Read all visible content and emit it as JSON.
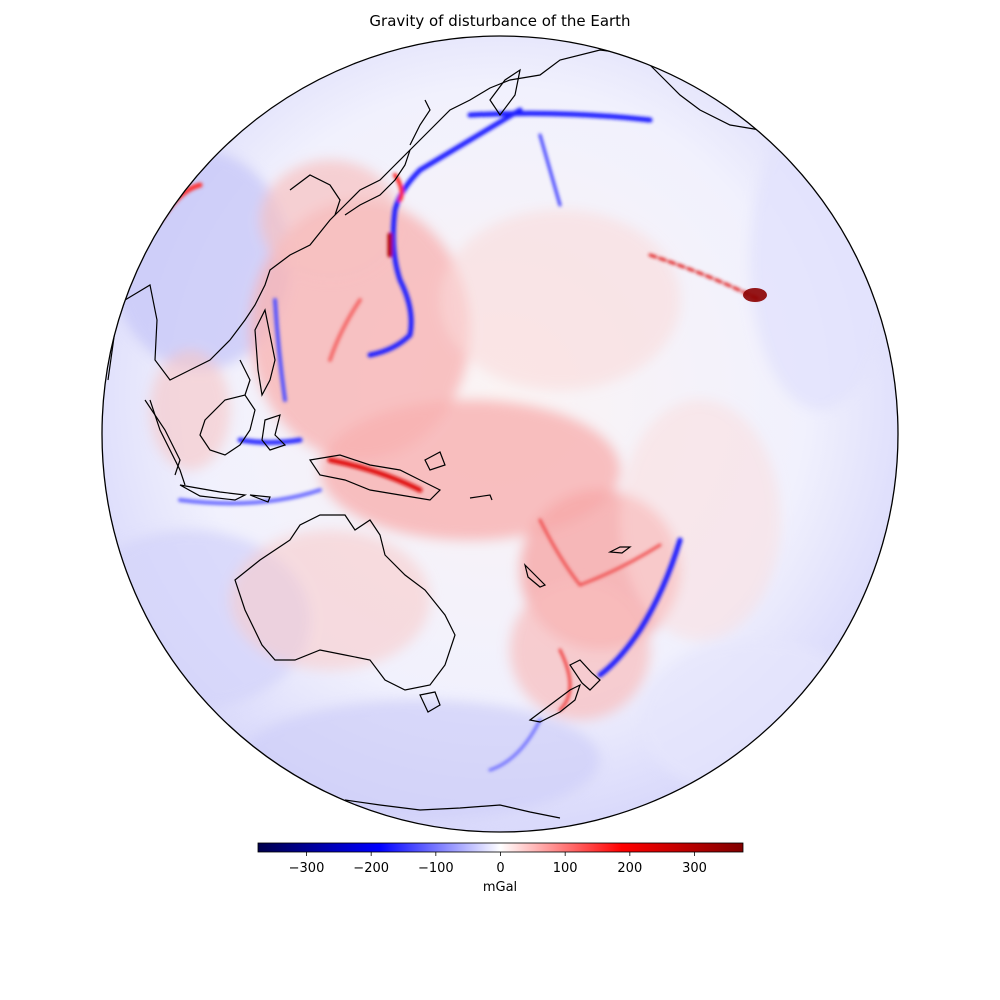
{
  "title": "Gravity of disturbance of the Earth",
  "map": {
    "projection": "orthographic",
    "colormap": "seismic",
    "coastlines": [
      "Asia",
      "Japan",
      "Kamchatka",
      "Philippines",
      "Borneo",
      "Sumatra",
      "New Guinea",
      "Australia",
      "Tasmania",
      "New Zealand",
      "New Caledonia",
      "Hawaii",
      "Antarctica"
    ]
  },
  "colorbar": {
    "label": "mGal",
    "vmin": -375,
    "vmax": 375,
    "ticks": [
      {
        "value": -300,
        "label": "−300"
      },
      {
        "value": -200,
        "label": "−200"
      },
      {
        "value": -100,
        "label": "−100"
      },
      {
        "value": 0,
        "label": "0"
      },
      {
        "value": 100,
        "label": "100"
      },
      {
        "value": 200,
        "label": "200"
      },
      {
        "value": 300,
        "label": "300"
      }
    ],
    "colors": [
      "#00004c",
      "#0000ff",
      "#ffffff",
      "#ff0000",
      "#800000"
    ]
  }
}
